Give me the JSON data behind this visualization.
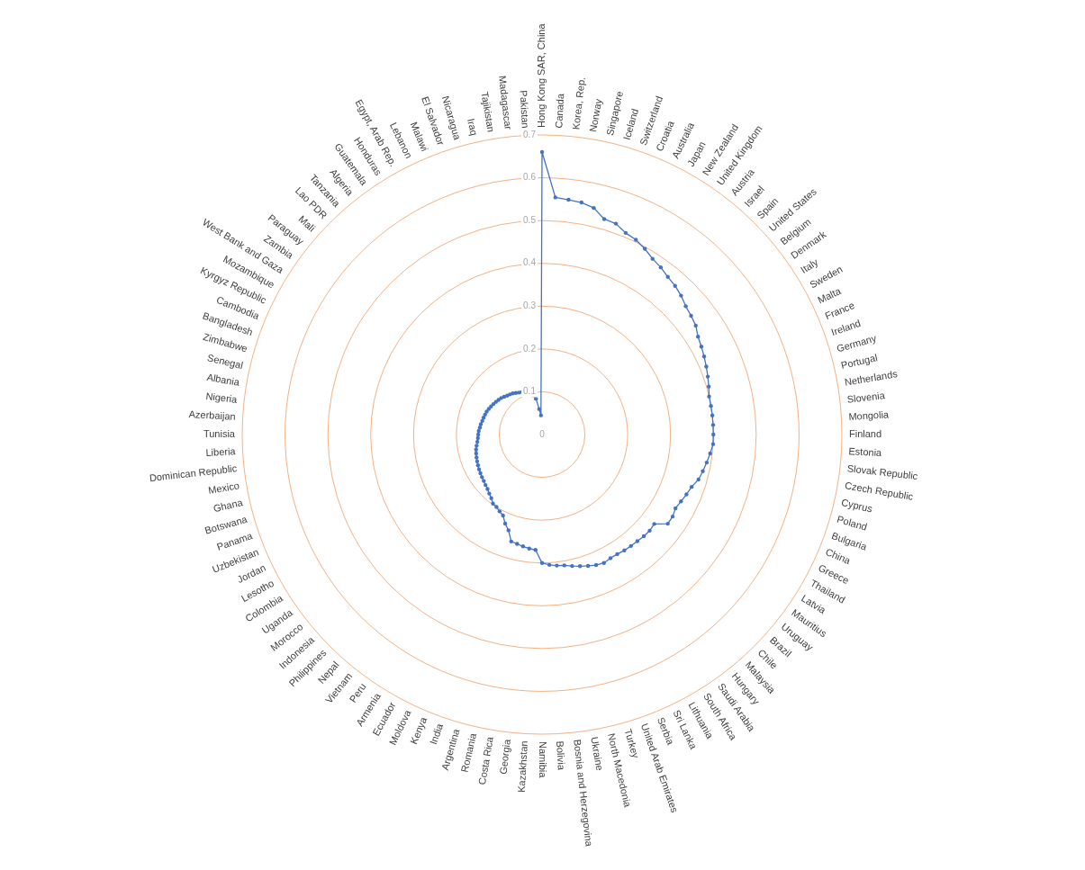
{
  "chart_data": {
    "type": "radar",
    "categories": [
      "Hong Kong SAR, China",
      "Canada",
      "Korea, Rep.",
      "Norway",
      "Singapore",
      "Iceland",
      "Switzerland",
      "Croatia",
      "Australia",
      "Japan",
      "New Zealand",
      "United Kingdom",
      "Austria",
      "Israel",
      "Spain",
      "United States",
      "Belgium",
      "Denmark",
      "Italy",
      "Sweden",
      "Malta",
      "France",
      "Ireland",
      "Germany",
      "Portugal",
      "Netherlands",
      "Slovenia",
      "Mongolia",
      "Finland",
      "Estonia",
      "Slovak Republic",
      "Czech Republic",
      "Cyprus",
      "Poland",
      "Bulgaria",
      "China",
      "Greece",
      "Thailand",
      "Latvia",
      "Mauritius",
      "Uruguay",
      "Brazil",
      "Chile",
      "Malaysia",
      "Hungary",
      "Saudi Arabia",
      "South Africa",
      "Lithuania",
      "Sri Lanka",
      "Serbia",
      "United Arab Emirates",
      "Turkey",
      "North Macedonia",
      "Ukraine",
      "Bosnia and Herzegovina",
      "Bolivia",
      "Namibia",
      "Kazakhstan",
      "Georgia",
      "Costa Rica",
      "Romania",
      "Argentina",
      "India",
      "Kenya",
      "Moldova",
      "Ecuador",
      "Armenia",
      "Peru",
      "Vietnam",
      "Nepal",
      "Philippines",
      "Indonesia",
      "Morocco",
      "Uganda",
      "Colombia",
      "Lesotho",
      "Jordan",
      "Uzbekistan",
      "Panama",
      "Botswana",
      "Ghana",
      "Mexico",
      "Dominican Republic",
      "Liberia",
      "Tunisia",
      "Azerbaijan",
      "Nigeria",
      "Albania",
      "Senegal",
      "Zimbabwe",
      "Bangladesh",
      "Cambodia",
      "Kyrgyz Republic",
      "Mozambique",
      "West Bank and Gaza",
      "Zambia",
      "Paraguay",
      "Mali",
      "Lao PDR",
      "Tanzania",
      "Algeria",
      "Guatemala",
      "Honduras",
      "Egypt, Arab Rep.",
      "Lebanon",
      "Malawi",
      "El Salvador",
      "Nicaragua",
      "Iraq",
      "Tajikistan",
      "Madagascar",
      "Pakistan"
    ],
    "series": [
      {
        "color": "#4472c4",
        "values": [
          0.66,
          0.555,
          0.552,
          0.55,
          0.543,
          0.524,
          0.522,
          0.51,
          0.505,
          0.496,
          0.485,
          0.479,
          0.471,
          0.466,
          0.459,
          0.45,
          0.445,
          0.44,
          0.43,
          0.425,
          0.42,
          0.415,
          0.41,
          0.405,
          0.4,
          0.4,
          0.4,
          0.4,
          0.4,
          0.4,
          0.395,
          0.39,
          0.385,
          0.38,
          0.37,
          0.365,
          0.36,
          0.356,
          0.36,
          0.36,
          0.335,
          0.337,
          0.336,
          0.334,
          0.333,
          0.332,
          0.33,
          0.33,
          0.333,
          0.33,
          0.325,
          0.32,
          0.315,
          0.31,
          0.308,
          0.305,
          0.3,
          0.27,
          0.268,
          0.265,
          0.262,
          0.26,
          0.237,
          0.225,
          0.21,
          0.205,
          0.2,
          0.198,
          0.19,
          0.185,
          0.18,
          0.177,
          0.174,
          0.172,
          0.17,
          0.168,
          0.166,
          0.164,
          0.162,
          0.16,
          0.158,
          0.155,
          0.152,
          0.15,
          0.149,
          0.148,
          0.146,
          0.145,
          0.143,
          0.142,
          0.141,
          0.14,
          0.138,
          0.136,
          0.134,
          0.132,
          0.13,
          0.128,
          0.125,
          0.122,
          0.12,
          0.118,
          0.115,
          0.112,
          0.11,
          0.1,
          0.1,
          0.098,
          0.094,
          0.085,
          0.06,
          0.045
        ]
      }
    ],
    "ylim": [
      0,
      0.7
    ],
    "yticks": [
      0,
      0.1,
      0.2,
      0.3,
      0.4,
      0.5,
      0.6,
      0.7
    ],
    "marker": "circle",
    "grid": true
  }
}
